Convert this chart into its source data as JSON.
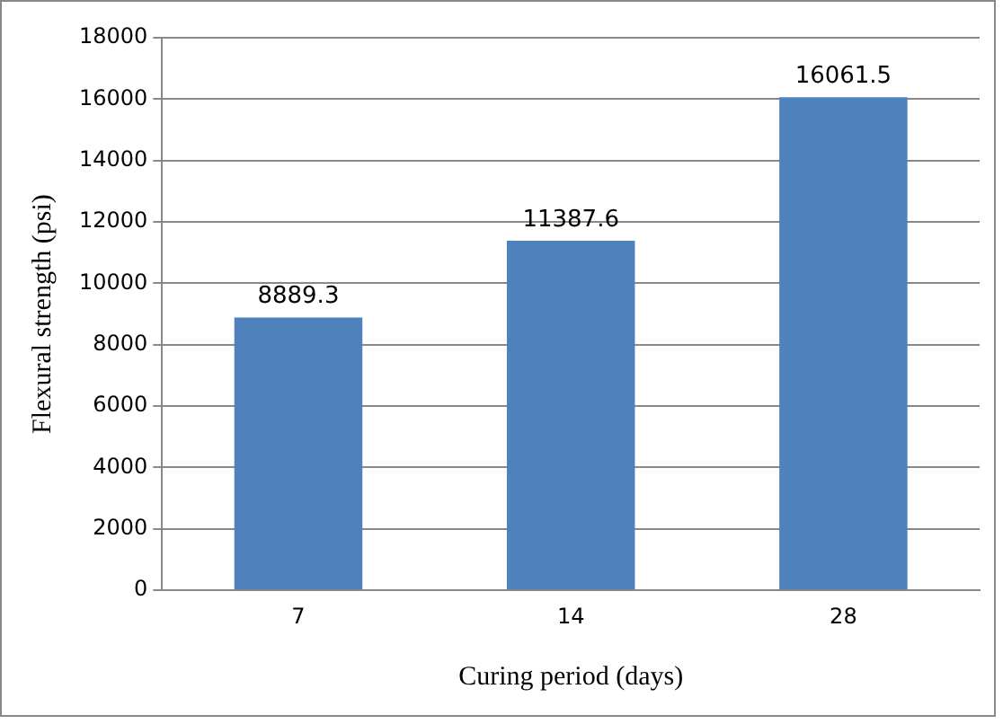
{
  "chart_data": {
    "type": "bar",
    "xlabel": "Curing period (days)",
    "ylabel": "Flexural strength (psi)",
    "categories": [
      "7",
      "14",
      "28"
    ],
    "values": [
      8889.3,
      11387.6,
      16061.5
    ],
    "color": "#4f81bd",
    "ylim": [
      0,
      18000
    ],
    "yticks": [
      0,
      2000,
      4000,
      6000,
      8000,
      10000,
      12000,
      14000,
      16000,
      18000
    ],
    "grid": "y",
    "data_labels": true
  }
}
